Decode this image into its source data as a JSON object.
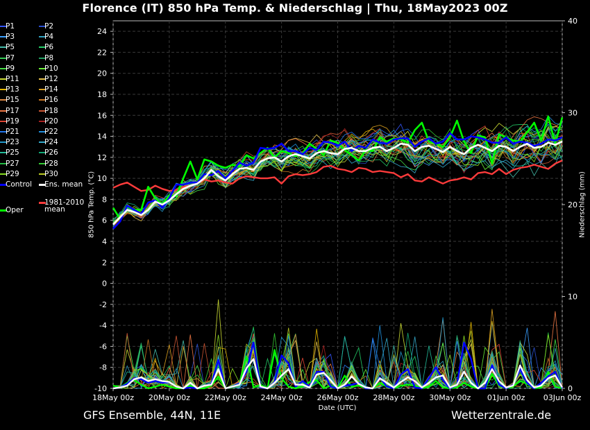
{
  "title": "Florence  (IT)  850 hPa Temp. & Niederschlag | Thu, 18May2023 00Z",
  "footer": {
    "left": "GFS Ensemble, 44N, 11E",
    "right": "Wetterzentrale.de"
  },
  "legend": {
    "members": [
      "P1",
      "P2",
      "P3",
      "P4",
      "P5",
      "P6",
      "P7",
      "P8",
      "P9",
      "P10",
      "P11",
      "P12",
      "P13",
      "P14",
      "P15",
      "P16",
      "P17",
      "P18",
      "P19",
      "P20",
      "P21",
      "P22",
      "P23",
      "P24",
      "P25",
      "P26",
      "P27",
      "P28",
      "P29",
      "P30"
    ],
    "member_colors": [
      "#3355ff",
      "#2a4fd0",
      "#3a9fff",
      "#2fa0c0",
      "#44bbaa",
      "#22cc66",
      "#33cc55",
      "#20a060",
      "#44dd44",
      "#66ee33",
      "#ccdd33",
      "#e6c24a",
      "#e6b800",
      "#d9a020",
      "#dd8844",
      "#cc7722",
      "#ee7744",
      "#cc5533",
      "#dd4433",
      "#aa2222",
      "#2277ee",
      "#1f8fdd",
      "#2299cc",
      "#33aacc",
      "#22bb99",
      "#11aa77",
      "#22bb44",
      "#33cc33",
      "#88dd22",
      "#bbcc22"
    ],
    "control": "Control",
    "ens_mean": "Ens. mean",
    "oper": "Oper",
    "clim_line1": "1981-2010",
    "clim_line2": "mean"
  },
  "colors": {
    "control": "#0000ff",
    "ens_mean": "#ffffff",
    "oper": "#00ff00",
    "clim": "#ff3b3b"
  },
  "chart_data": {
    "type": "line",
    "xlabel": "Date (UTC)",
    "ylabel": "850 hPa Temp. (°C)",
    "y2label": "Niederschlag (mm)",
    "x_ticks": [
      "18May 00z",
      "20May 00z",
      "22May 00z",
      "24May 00z",
      "26May 00z",
      "28May 00z",
      "30May 00z",
      "01Jun 00z",
      "03Jun 00z"
    ],
    "xlim": [
      "18May 00z",
      "03Jun 00z"
    ],
    "x_step": "6h",
    "ylim": [
      -10,
      25
    ],
    "y_ticks": [
      -10,
      -8,
      -6,
      -4,
      -2,
      0,
      2,
      4,
      6,
      8,
      10,
      12,
      14,
      16,
      18,
      20,
      22,
      24
    ],
    "y2lim": [
      0,
      40
    ],
    "y2_ticks": [
      0,
      10,
      20,
      30,
      40
    ],
    "grid": true,
    "temperature": {
      "ens_mean": [
        5.6,
        6.3,
        7.0,
        6.8,
        6.5,
        7.0,
        7.8,
        7.5,
        7.9,
        8.5,
        9.0,
        9.3,
        9.5,
        10.0,
        10.8,
        10.2,
        9.8,
        10.4,
        10.9,
        11.0,
        10.8,
        11.6,
        11.9,
        12.0,
        11.6,
        12.1,
        12.3,
        12.1,
        11.9,
        12.4,
        12.6,
        12.4,
        12.3,
        12.8,
        12.9,
        12.6,
        12.6,
        12.9,
        13.0,
        12.6,
        12.9,
        13.3,
        13.2,
        12.6,
        13.0,
        13.1,
        12.8,
        12.5,
        13.0,
        12.6,
        12.3,
        12.9,
        13.2,
        12.9,
        12.6,
        13.1,
        13.0,
        12.6,
        13.0,
        13.3,
        12.9,
        13.0,
        13.4,
        13.2,
        13.5
      ],
      "control": [
        5.2,
        5.9,
        7.4,
        7.0,
        6.6,
        7.7,
        7.9,
        7.2,
        8.1,
        9.4,
        9.4,
        9.6,
        9.6,
        10.4,
        10.3,
        10.7,
        10.0,
        10.7,
        11.5,
        11.2,
        11.5,
        12.9,
        12.8,
        12.9,
        13.3,
        12.6,
        12.6,
        12.3,
        12.9,
        12.7,
        13.5,
        13.4,
        13.1,
        13.5,
        12.6,
        13.1,
        12.9,
        13.7,
        13.4,
        13.3,
        13.7,
        13.8,
        13.8,
        13.0,
        13.5,
        13.8,
        13.3,
        13.5,
        14.3,
        13.7,
        13.7,
        14.0,
        13.9,
        13.7,
        13.4,
        13.4,
        13.9,
        13.3,
        13.5,
        13.4,
        13.1,
        13.3,
        13.7,
        13.6,
        13.9
      ],
      "oper": [
        7.2,
        6.1,
        7.3,
        7.0,
        7.0,
        9.2,
        8.1,
        7.5,
        8.4,
        8.3,
        10.0,
        11.6,
        9.9,
        11.8,
        11.6,
        11.2,
        11.0,
        11.3,
        11.1,
        12.2,
        11.9,
        12.4,
        12.9,
        12.0,
        12.6,
        12.4,
        12.1,
        12.4,
        13.3,
        12.8,
        12.2,
        13.6,
        13.4,
        12.7,
        12.2,
        11.7,
        12.7,
        12.6,
        13.9,
        13.5,
        13.8,
        13.7,
        13.4,
        14.6,
        15.3,
        13.5,
        13.3,
        13.0,
        13.9,
        15.5,
        13.5,
        12.4,
        14.1,
        13.9,
        11.4,
        14.2,
        13.9,
        13.6,
        13.5,
        14.4,
        15.3,
        13.6,
        15.9,
        13.3,
        15.8
      ],
      "clim": [
        9.1,
        9.4,
        9.6,
        9.2,
        8.8,
        8.9,
        9.3,
        9.0,
        8.8,
        8.9,
        9.2,
        9.3,
        9.5,
        9.9,
        9.7,
        9.8,
        9.6,
        9.5,
        10.0,
        10.2,
        10.1,
        10.0,
        10.0,
        10.1,
        9.5,
        10.2,
        10.4,
        10.3,
        10.4,
        10.6,
        11.1,
        11.2,
        10.9,
        10.8,
        10.6,
        11.0,
        10.9,
        10.6,
        10.7,
        10.6,
        10.5,
        10.1,
        10.4,
        9.8,
        9.7,
        10.1,
        9.8,
        9.5,
        9.8,
        9.9,
        10.1,
        9.9,
        10.5,
        10.6,
        10.4,
        10.9,
        10.4,
        10.8,
        11.0,
        11.1,
        11.3,
        11.1,
        10.9,
        11.4,
        11.7
      ]
    },
    "precipitation": {
      "ens_mean": [
        0.0,
        0.1,
        0.3,
        1.0,
        1.2,
        0.8,
        1.0,
        0.8,
        0.7,
        0.2,
        0.0,
        0.6,
        0.0,
        0.3,
        0.4,
        2.1,
        0.0,
        0.2,
        0.4,
        2.2,
        3.2,
        0.2,
        0.0,
        0.6,
        1.4,
        2.1,
        0.4,
        0.4,
        0.1,
        1.5,
        1.7,
        0.9,
        0.0,
        0.4,
        1.3,
        0.5,
        0.1,
        0.0,
        1.1,
        0.6,
        0.1,
        0.7,
        1.2,
        0.8,
        0.1,
        0.6,
        1.2,
        1.4,
        0.1,
        0.4,
        1.8,
        0.6,
        0.0,
        0.6,
        2.1,
        0.8,
        0.1,
        0.3,
        2.5,
        0.9,
        0.1,
        0.3,
        1.1,
        1.4,
        0.1
      ],
      "control": [
        0.0,
        0.1,
        0.5,
        1.1,
        1.0,
        0.6,
        0.8,
        0.6,
        0.7,
        0.2,
        0.0,
        0.1,
        0.0,
        0.3,
        0.5,
        3.1,
        0.0,
        0.2,
        0.5,
        1.8,
        5.0,
        0.1,
        0.0,
        0.7,
        3.6,
        2.7,
        0.2,
        0.8,
        0.2,
        1.8,
        1.8,
        0.2,
        0.0,
        0.3,
        0.4,
        0.6,
        0.0,
        0.0,
        1.2,
        0.2,
        0.0,
        1.5,
        2.1,
        0.1,
        0.0,
        1.1,
        2.3,
        0.9,
        0.0,
        0.4,
        5.0,
        3.2,
        0.0,
        0.0,
        2.5,
        0.4,
        0.0,
        0.4,
        2.1,
        0.6,
        0.0,
        0.6,
        1.3,
        1.8,
        0.0
      ],
      "oper": [
        0.3,
        0.1,
        0.6,
        0.9,
        0.4,
        0.0,
        0.2,
        0.4,
        0.2,
        0.0,
        0.0,
        0.3,
        0.0,
        0.0,
        0.3,
        1.3,
        0.0,
        0.2,
        0.5,
        3.5,
        0.1,
        0.4,
        0.0,
        4.2,
        1.1,
        0.2,
        0.0,
        0.2,
        0.7,
        0.9,
        0.0,
        0.3,
        0.0,
        1.4,
        0.2,
        0.3,
        0.0,
        0.0,
        0.6,
        0.2,
        0.0,
        0.3,
        0.4,
        0.3,
        0.0,
        0.2,
        0.8,
        0.1,
        0.0,
        0.1,
        0.6,
        0.2,
        0.0,
        0.0,
        1.6,
        0.3,
        0.0,
        0.2,
        0.8,
        0.5,
        0.0,
        0.1,
        1.8,
        0.2,
        0.0
      ]
    }
  }
}
